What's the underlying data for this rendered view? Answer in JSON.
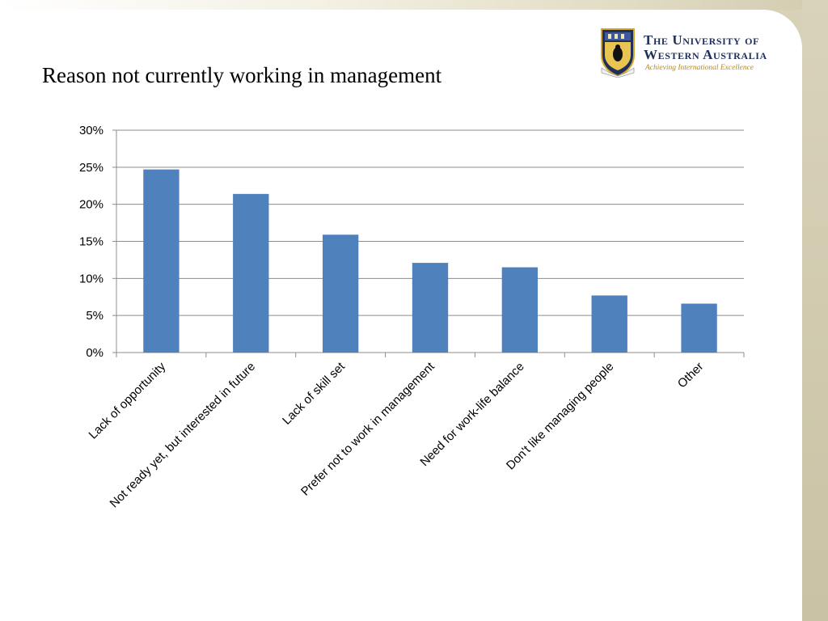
{
  "slide": {
    "title": "Reason not currently working in management"
  },
  "logo": {
    "line1": "The University of",
    "line2": "Western Australia",
    "tagline": "Achieving International Excellence"
  },
  "colors": {
    "bar": "#4f81bd",
    "gridline": "#8c8c8c",
    "axis": "#8c8c8c",
    "crest_shield": "#1f2f5c",
    "crest_gold": "#d4a62a"
  },
  "chart_data": {
    "type": "bar",
    "categories": [
      "Lack of opportunity",
      "Not ready yet, but interested in future",
      "Lack of skill set",
      "Prefer not to work in management",
      "Need for work-life balance",
      "Don't like managing people",
      "Other"
    ],
    "values": [
      24.7,
      21.4,
      15.9,
      12.1,
      11.5,
      7.7,
      6.6
    ],
    "ylim": [
      0,
      30
    ],
    "yticks": [
      "0%",
      "5%",
      "10%",
      "15%",
      "20%",
      "25%",
      "30%"
    ],
    "xlabel": "",
    "ylabel": "",
    "grid": true,
    "legend": "none"
  }
}
